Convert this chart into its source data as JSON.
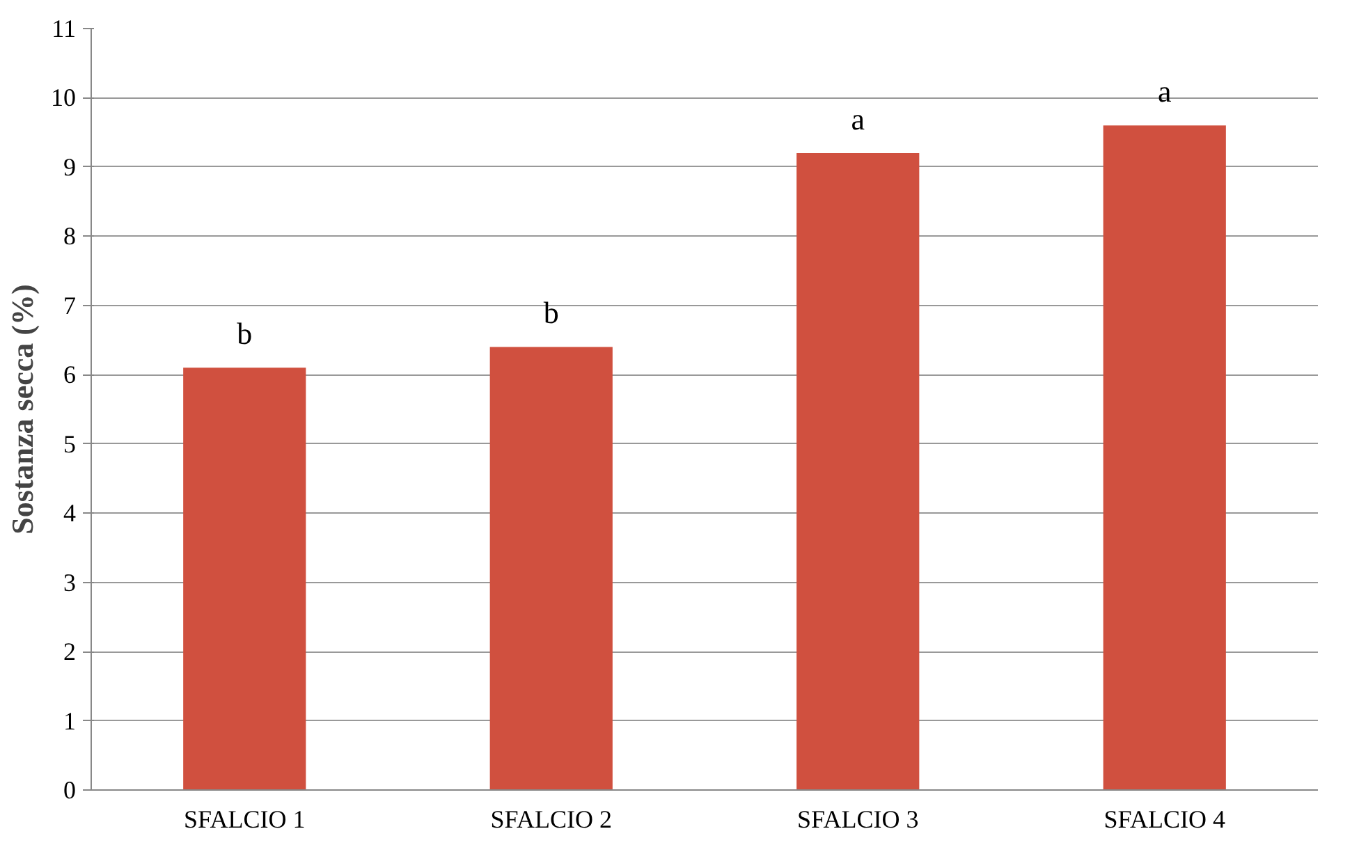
{
  "chart_data": {
    "type": "bar",
    "ylabel": "Sostanza secca (%)",
    "categories": [
      "SFALCIO 1",
      "SFALCIO 2",
      "SFALCIO 3",
      "SFALCIO 4"
    ],
    "values": [
      6.1,
      6.4,
      9.2,
      9.6
    ],
    "color": "#d0503f",
    "ylim": [
      0,
      11
    ],
    "yticks": [
      0,
      1,
      2,
      3,
      4,
      5,
      6,
      7,
      8,
      9,
      10,
      11
    ],
    "grid": "y",
    "annotations": [
      {
        "text": "b",
        "x": "SFALCIO 1",
        "y": 6.1
      },
      {
        "text": "b",
        "x": "SFALCIO 2",
        "y": 6.4
      },
      {
        "text": "a",
        "x": "SFALCIO 3",
        "y": 9.2
      },
      {
        "text": "a",
        "x": "SFALCIO 4",
        "y": 9.6
      }
    ]
  }
}
